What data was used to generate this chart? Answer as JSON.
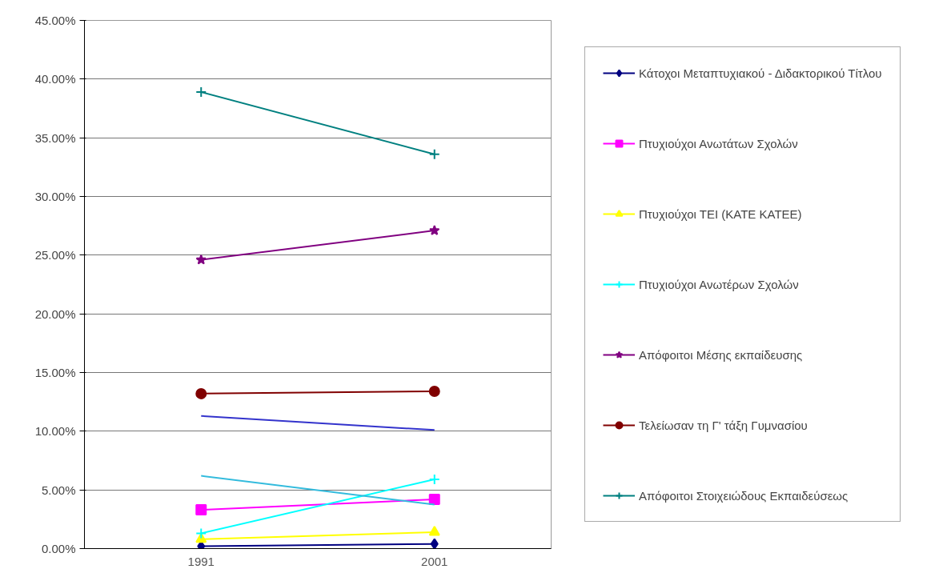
{
  "chart_data": {
    "type": "line",
    "categories": [
      "1991",
      "2001"
    ],
    "ylim": [
      0,
      45
    ],
    "yticks": [
      {
        "value": 0,
        "label": "0.00%"
      },
      {
        "value": 5,
        "label": "5.00%"
      },
      {
        "value": 10,
        "label": "10.00%"
      },
      {
        "value": 15,
        "label": "15.00%"
      },
      {
        "value": 20,
        "label": "20.00%"
      },
      {
        "value": 25,
        "label": "25.00%"
      },
      {
        "value": 30,
        "label": "30.00%"
      },
      {
        "value": 35,
        "label": "35.00%"
      },
      {
        "value": 40,
        "label": "40.00%"
      },
      {
        "value": 45,
        "label": "45.00%"
      }
    ],
    "grid": "y",
    "legend": "right",
    "series": [
      {
        "name": "Κάτοχοι Μεταπτυχιακού - Διδακτορικού Τίτλου",
        "color": "#000080",
        "marker": "diamond",
        "values": [
          0.2,
          0.4
        ]
      },
      {
        "name": "Πτυχιούχοι Ανωτάτων Σχολών",
        "color": "#ff00ff",
        "marker": "square",
        "values": [
          3.3,
          4.2
        ]
      },
      {
        "name": "Πτυχιούχοι ΤΕΙ (ΚΑΤΕ ΚΑΤΕΕ)",
        "color": "#ffff00",
        "marker": "triangle",
        "values": [
          0.8,
          1.4
        ]
      },
      {
        "name": "Πτυχιούχοι Ανωτέρων Σχολών",
        "color": "#00ffff",
        "marker": "cross",
        "values": [
          1.3,
          5.9
        ]
      },
      {
        "name": "Απόφοιτοι Μέσης εκπαίδευσης",
        "color": "#800080",
        "marker": "star",
        "values": [
          24.6,
          27.1
        ]
      },
      {
        "name": "Τελείωσαν τη Γ' τάξη Γυμνασίου",
        "color": "#800000",
        "marker": "circle",
        "values": [
          13.2,
          13.4
        ]
      },
      {
        "name": "Απόφοιτοι Στοιχειώδους Εκπαιδεύσεως",
        "color": "#008080",
        "marker": "cross",
        "values": [
          38.9,
          33.6
        ]
      },
      {
        "color": "#3333cc",
        "marker": "none",
        "values": [
          11.3,
          10.1
        ]
      },
      {
        "color": "#33bbdd",
        "marker": "none",
        "values": [
          6.2,
          3.75
        ]
      }
    ]
  }
}
